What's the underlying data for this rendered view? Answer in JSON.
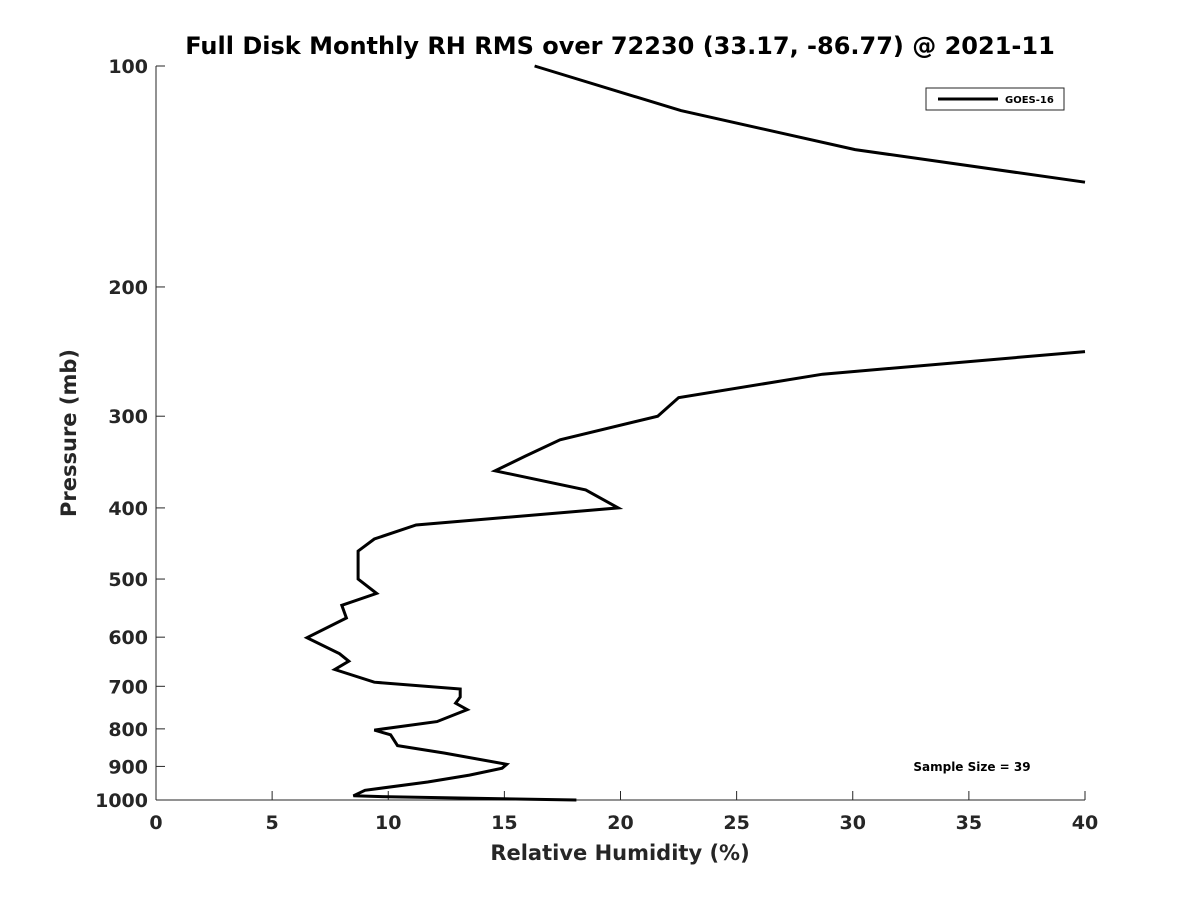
{
  "chart_data": {
    "type": "line",
    "title": "Full Disk Monthly RH RMS over 72230 (33.17, -86.77) @ 2021-11",
    "xlabel": "Relative Humidity (%)",
    "ylabel": "Pressure (mb)",
    "xlim": [
      0,
      40
    ],
    "ylim": [
      100,
      1000
    ],
    "y_reversed": true,
    "y_scale": "log",
    "x_ticks": [
      0,
      5,
      10,
      15,
      20,
      25,
      30,
      35,
      40
    ],
    "x_tick_labels": [
      "0",
      "5",
      "10",
      "15",
      "20",
      "25",
      "30",
      "35",
      "40"
    ],
    "y_ticks": [
      100,
      200,
      300,
      400,
      500,
      600,
      700,
      800,
      900,
      1000
    ],
    "y_tick_labels": [
      "100",
      "200",
      "300",
      "400",
      "500",
      "600",
      "700",
      "800",
      "900",
      "1000"
    ],
    "grid": false,
    "legend_position": "top-right",
    "series": [
      {
        "name": "GOES-16",
        "color": "#000000",
        "segments": [
          [
            {
              "x": 16.3,
              "y": 100
            },
            {
              "x": 22.6,
              "y": 115
            },
            {
              "x": 30.1,
              "y": 130
            },
            {
              "x": 40.0,
              "y": 144
            }
          ],
          [
            {
              "x": 40.0,
              "y": 245
            },
            {
              "x": 28.7,
              "y": 263
            },
            {
              "x": 22.5,
              "y": 283
            },
            {
              "x": 21.6,
              "y": 300
            },
            {
              "x": 17.4,
              "y": 323
            },
            {
              "x": 15.9,
              "y": 340
            },
            {
              "x": 14.6,
              "y": 356
            },
            {
              "x": 18.5,
              "y": 378
            },
            {
              "x": 19.9,
              "y": 400
            },
            {
              "x": 11.2,
              "y": 422
            },
            {
              "x": 9.4,
              "y": 441
            },
            {
              "x": 8.7,
              "y": 458
            },
            {
              "x": 8.7,
              "y": 475
            },
            {
              "x": 8.7,
              "y": 500
            },
            {
              "x": 9.5,
              "y": 523
            },
            {
              "x": 8.0,
              "y": 543
            },
            {
              "x": 8.2,
              "y": 565
            },
            {
              "x": 6.5,
              "y": 601
            },
            {
              "x": 7.9,
              "y": 632
            },
            {
              "x": 8.3,
              "y": 647
            },
            {
              "x": 7.7,
              "y": 664
            },
            {
              "x": 9.4,
              "y": 691
            },
            {
              "x": 13.1,
              "y": 706
            },
            {
              "x": 13.1,
              "y": 724
            },
            {
              "x": 12.9,
              "y": 738
            },
            {
              "x": 13.4,
              "y": 753
            },
            {
              "x": 12.1,
              "y": 782
            },
            {
              "x": 9.4,
              "y": 803
            },
            {
              "x": 10.1,
              "y": 815
            },
            {
              "x": 10.4,
              "y": 843
            },
            {
              "x": 12.4,
              "y": 863
            },
            {
              "x": 15.1,
              "y": 894
            },
            {
              "x": 14.9,
              "y": 905
            },
            {
              "x": 13.5,
              "y": 925
            },
            {
              "x": 11.7,
              "y": 945
            },
            {
              "x": 9.0,
              "y": 970
            },
            {
              "x": 8.5,
              "y": 987
            },
            {
              "x": 10.0,
              "y": 990
            },
            {
              "x": 18.1,
              "y": 1000
            }
          ]
        ]
      }
    ],
    "annotation": "Sample Size = 39"
  }
}
